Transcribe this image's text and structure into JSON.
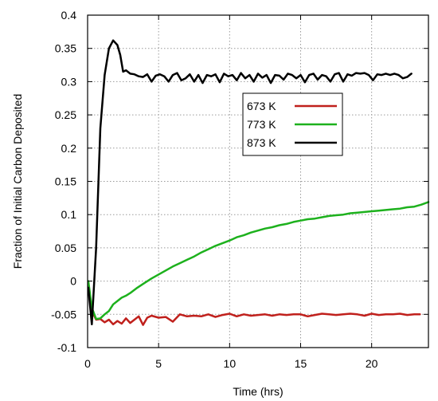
{
  "chart_data": {
    "type": "line",
    "xlabel": "Time (hrs)",
    "ylabel": "Fraction of Initial Carbon Deposited",
    "xlim": [
      0,
      24
    ],
    "ylim": [
      -0.1,
      0.4
    ],
    "xticks": [
      0,
      5,
      10,
      15,
      20
    ],
    "xtick_labels": [
      "0",
      "5",
      "10",
      "15",
      "20"
    ],
    "yticks": [
      -0.1,
      -0.05,
      0,
      0.05,
      0.1,
      0.15,
      0.2,
      0.25,
      0.3,
      0.35,
      0.4
    ],
    "ytick_labels": [
      "-0.1",
      "-0.05",
      "0",
      "0.05",
      "0.1",
      "0.15",
      "0.2",
      "0.25",
      "0.3",
      "0.35",
      "0.4"
    ],
    "grid": true,
    "legend_position": "upper-right-inside",
    "series": [
      {
        "name": "673 K",
        "color": "#c0201c",
        "x": [
          0.05,
          0.3,
          0.6,
          0.9,
          1.2,
          1.5,
          1.8,
          2.1,
          2.4,
          2.7,
          3.0,
          3.3,
          3.6,
          3.9,
          4.2,
          4.5,
          5.0,
          5.5,
          6.0,
          6.5,
          7.0,
          7.5,
          8.0,
          8.5,
          9.0,
          9.5,
          10.0,
          10.5,
          11.0,
          11.5,
          12.0,
          12.5,
          13.0,
          13.5,
          14.0,
          14.5,
          15.0,
          15.5,
          16.0,
          16.5,
          17.0,
          17.5,
          18.0,
          18.5,
          19.0,
          19.5,
          20.0,
          20.5,
          21.0,
          21.5,
          22.0,
          22.5,
          23.0,
          23.4
        ],
        "y": [
          -0.003,
          -0.045,
          -0.058,
          -0.057,
          -0.062,
          -0.058,
          -0.065,
          -0.06,
          -0.064,
          -0.056,
          -0.063,
          -0.058,
          -0.053,
          -0.066,
          -0.055,
          -0.052,
          -0.055,
          -0.054,
          -0.061,
          -0.05,
          -0.053,
          -0.052,
          -0.053,
          -0.05,
          -0.054,
          -0.051,
          -0.049,
          -0.053,
          -0.05,
          -0.052,
          -0.051,
          -0.05,
          -0.052,
          -0.05,
          -0.051,
          -0.05,
          -0.05,
          -0.053,
          -0.051,
          -0.049,
          -0.05,
          -0.051,
          -0.05,
          -0.049,
          -0.05,
          -0.052,
          -0.049,
          -0.051,
          -0.05,
          -0.05,
          -0.049,
          -0.051,
          -0.05,
          -0.05
        ]
      },
      {
        "name": "773 K",
        "color": "#1db11d",
        "x": [
          0.05,
          0.3,
          0.6,
          0.9,
          1.2,
          1.5,
          1.8,
          2.1,
          2.4,
          2.7,
          3.0,
          3.5,
          4.0,
          4.5,
          5.0,
          5.5,
          6.0,
          6.5,
          7.0,
          7.5,
          8.0,
          8.5,
          9.0,
          9.5,
          10.0,
          10.5,
          11.0,
          11.5,
          12.0,
          12.5,
          13.0,
          13.5,
          14.0,
          14.5,
          15.0,
          15.5,
          16.0,
          16.5,
          17.0,
          17.5,
          18.0,
          18.5,
          19.0,
          19.5,
          20.0,
          20.5,
          21.0,
          21.5,
          22.0,
          22.5,
          23.0,
          23.5,
          24.0
        ],
        "y": [
          0.0,
          -0.04,
          -0.057,
          -0.056,
          -0.05,
          -0.045,
          -0.035,
          -0.03,
          -0.025,
          -0.022,
          -0.018,
          -0.01,
          -0.003,
          0.004,
          0.01,
          0.016,
          0.022,
          0.027,
          0.032,
          0.037,
          0.043,
          0.048,
          0.053,
          0.057,
          0.061,
          0.066,
          0.069,
          0.073,
          0.076,
          0.079,
          0.081,
          0.084,
          0.086,
          0.089,
          0.091,
          0.093,
          0.094,
          0.096,
          0.098,
          0.099,
          0.1,
          0.102,
          0.103,
          0.104,
          0.105,
          0.106,
          0.107,
          0.108,
          0.109,
          0.111,
          0.112,
          0.115,
          0.119
        ]
      },
      {
        "name": "873 K",
        "color": "#000000",
        "x": [
          0.05,
          0.3,
          0.6,
          0.9,
          1.2,
          1.5,
          1.8,
          2.1,
          2.3,
          2.5,
          2.7,
          3.0,
          3.3,
          3.6,
          3.9,
          4.2,
          4.5,
          4.8,
          5.1,
          5.4,
          5.7,
          6.0,
          6.3,
          6.6,
          6.9,
          7.2,
          7.5,
          7.8,
          8.1,
          8.4,
          8.7,
          9.0,
          9.3,
          9.6,
          9.9,
          10.2,
          10.5,
          10.8,
          11.1,
          11.4,
          11.7,
          12.0,
          12.3,
          12.6,
          12.9,
          13.2,
          13.5,
          13.8,
          14.1,
          14.4,
          14.7,
          15.0,
          15.3,
          15.6,
          15.9,
          16.2,
          16.5,
          16.8,
          17.1,
          17.4,
          17.7,
          18.0,
          18.3,
          18.6,
          18.9,
          19.2,
          19.5,
          19.8,
          20.1,
          20.4,
          20.7,
          21.0,
          21.3,
          21.6,
          21.9,
          22.2,
          22.5,
          22.8
        ],
        "y": [
          -0.01,
          -0.065,
          0.05,
          0.23,
          0.31,
          0.35,
          0.362,
          0.355,
          0.34,
          0.315,
          0.317,
          0.312,
          0.311,
          0.308,
          0.307,
          0.311,
          0.3,
          0.309,
          0.311,
          0.308,
          0.3,
          0.31,
          0.313,
          0.302,
          0.305,
          0.311,
          0.3,
          0.31,
          0.298,
          0.31,
          0.308,
          0.311,
          0.299,
          0.312,
          0.308,
          0.31,
          0.302,
          0.313,
          0.305,
          0.31,
          0.3,
          0.312,
          0.306,
          0.31,
          0.298,
          0.31,
          0.309,
          0.303,
          0.312,
          0.31,
          0.305,
          0.31,
          0.299,
          0.31,
          0.312,
          0.303,
          0.31,
          0.308,
          0.3,
          0.311,
          0.313,
          0.3,
          0.311,
          0.309,
          0.313,
          0.312,
          0.313,
          0.31,
          0.302,
          0.311,
          0.31,
          0.312,
          0.31,
          0.312,
          0.31,
          0.305,
          0.307,
          0.312
        ]
      }
    ]
  }
}
